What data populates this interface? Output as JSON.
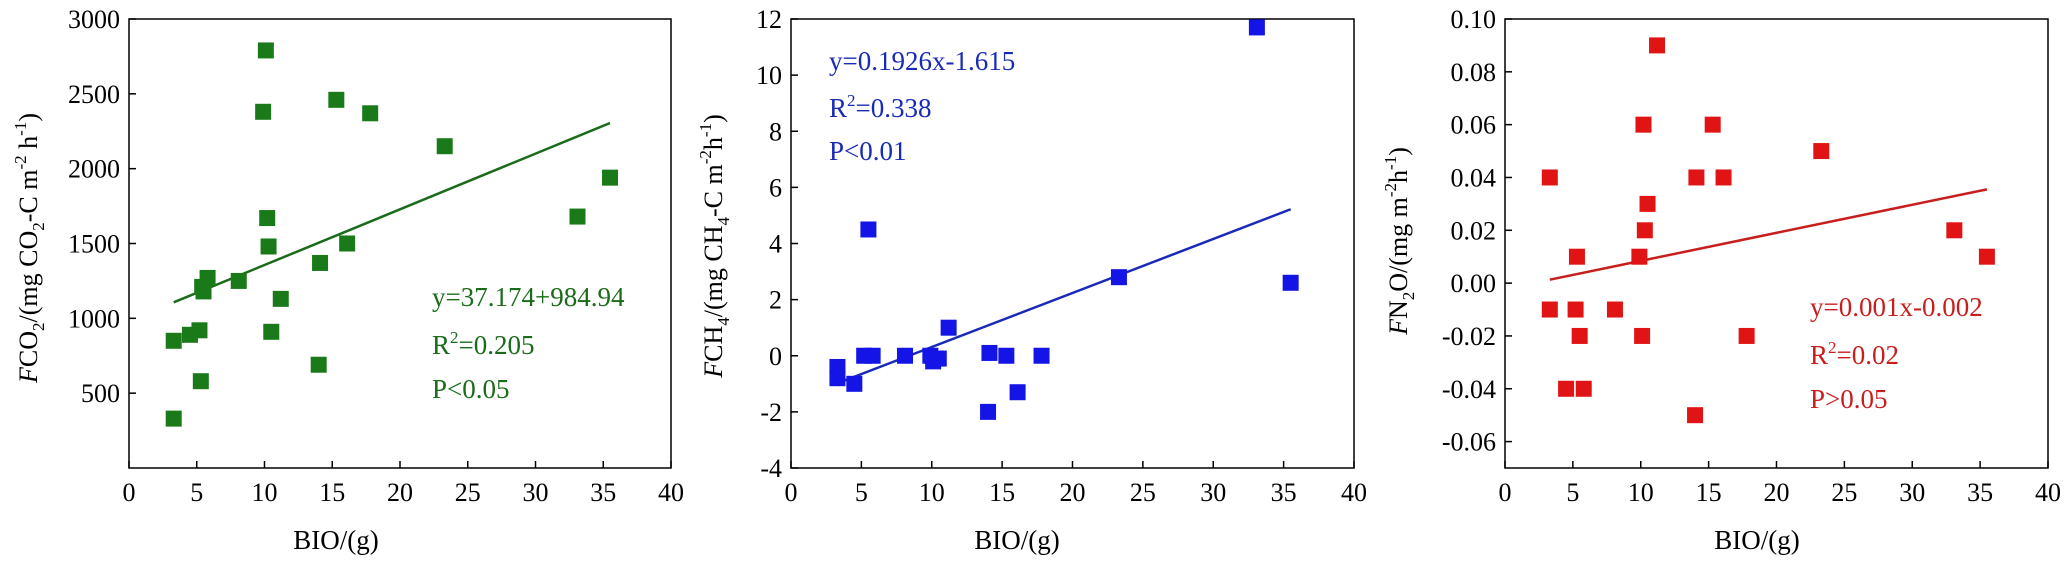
{
  "chart_data": [
    {
      "type": "scatter",
      "title": "",
      "xlabel": "BIO/(g)",
      "ylabel_parts": [
        "F",
        "CO",
        "2",
        "/(mg CO",
        "2",
        "-C m",
        "-2",
        " h",
        "-1",
        ")"
      ],
      "xlim": [
        0,
        40
      ],
      "ylim": [
        0,
        3000
      ],
      "xticks": [
        0,
        5,
        10,
        15,
        20,
        25,
        30,
        35,
        40
      ],
      "yticks": [
        500,
        1000,
        1500,
        2000,
        2500,
        3000
      ],
      "ytick_labels": [
        "500",
        "1000",
        "1500",
        "2000",
        "2500",
        "3000"
      ],
      "color": "#1a7a1a",
      "line_color": "#1a6b1a",
      "series": [
        {
          "x": [
            3.3,
            3.3,
            4.5,
            5.2,
            5.3,
            5.4,
            5.5,
            5.8,
            8.1,
            9.9,
            10.1,
            10.2,
            10.3,
            10.5,
            11.2,
            14.0,
            14.1,
            15.3,
            16.1,
            17.8,
            23.3,
            33.1,
            35.5
          ],
          "y": [
            850,
            330,
            890,
            920,
            580,
            1210,
            1180,
            1270,
            1250,
            2380,
            2790,
            1670,
            1480,
            910,
            1130,
            690,
            1370,
            2460,
            1500,
            2370,
            2150,
            1680,
            1940
          ]
        }
      ],
      "fit_line": {
        "x": [
          3.3,
          35.5
        ],
        "y": [
          1107,
          2305
        ]
      },
      "annotations": {
        "equation": "y=37.174+984.94",
        "r2_prefix": "R",
        "r2_sup": "2",
        "r2_value": "=0.205",
        "p": "P<0.05"
      }
    },
    {
      "type": "scatter",
      "title": "",
      "xlabel": "BIO/(g)",
      "ylabel_parts": [
        "F",
        "CH",
        "4",
        "/(mg CH",
        "4",
        "-C m",
        "-2",
        "h",
        "-1",
        ")"
      ],
      "xlim": [
        0,
        40
      ],
      "ylim": [
        -4,
        12
      ],
      "xticks": [
        0,
        5,
        10,
        15,
        20,
        25,
        30,
        35,
        40
      ],
      "yticks": [
        -4,
        -2,
        0,
        2,
        4,
        6,
        8,
        10,
        12
      ],
      "ytick_labels": [
        "-4",
        "-2",
        "0",
        "2",
        "4",
        "6",
        "8",
        "10",
        "12"
      ],
      "color": "#1414e6",
      "line_color": "#1a2ab8",
      "series": [
        {
          "x": [
            3.3,
            3.3,
            4.5,
            5.2,
            5.5,
            5.8,
            8.1,
            9.9,
            10.1,
            10.3,
            10.5,
            11.2,
            14.0,
            14.1,
            15.3,
            16.1,
            17.8,
            23.3,
            33.1,
            35.5
          ],
          "y": [
            -0.4,
            -0.8,
            -1.0,
            0.0,
            4.5,
            0.0,
            0.0,
            0.0,
            -0.2,
            -0.1,
            -0.1,
            1.0,
            -2.0,
            0.1,
            0.0,
            -1.3,
            0.0,
            2.8,
            11.7,
            2.6
          ]
        }
      ],
      "fit_line": {
        "x": [
          3.3,
          35.5
        ],
        "y": [
          -0.98,
          5.22
        ]
      },
      "annotations": {
        "equation": "y=0.1926x-1.615",
        "r2_prefix": "R",
        "r2_sup": "2",
        "r2_value": "=0.338",
        "p": "P<0.01"
      }
    },
    {
      "type": "scatter",
      "title": "",
      "xlabel": "BIO/(g)",
      "ylabel_parts": [
        "F",
        "N",
        "2",
        "O/(mg m",
        "-2",
        "h",
        "-1",
        ")"
      ],
      "xlim": [
        0,
        40
      ],
      "ylim": [
        -0.07,
        0.1
      ],
      "xticks": [
        0,
        5,
        10,
        15,
        20,
        25,
        30,
        35,
        40
      ],
      "yticks": [
        -0.06,
        -0.04,
        -0.02,
        0.0,
        0.02,
        0.04,
        0.06,
        0.08,
        0.1
      ],
      "ytick_labels": [
        "-0.06",
        "-0.04",
        "-0.02",
        "0.00",
        "0.02",
        "0.04",
        "0.06",
        "0.08",
        "0.10"
      ],
      "color": "#e01414",
      "line_color": "#c81e1e",
      "series": [
        {
          "x": [
            3.3,
            3.3,
            4.5,
            5.2,
            5.3,
            5.5,
            5.8,
            8.1,
            9.9,
            10.1,
            10.2,
            10.3,
            10.5,
            11.2,
            14.0,
            14.1,
            15.3,
            16.1,
            17.8,
            23.3,
            33.1,
            35.5
          ],
          "y": [
            0.04,
            -0.01,
            -0.04,
            -0.01,
            0.01,
            -0.02,
            -0.04,
            -0.01,
            0.01,
            -0.02,
            0.06,
            0.02,
            0.03,
            0.09,
            -0.05,
            0.04,
            0.06,
            0.04,
            -0.02,
            0.05,
            0.02,
            0.01
          ]
        }
      ],
      "fit_line": {
        "x": [
          3.3,
          35.5
        ],
        "y": [
          0.0013,
          0.0355
        ]
      },
      "annotations": {
        "equation": "y=0.001x-0.002",
        "r2_prefix": "R",
        "r2_sup": "2",
        "r2_value": "=0.02",
        "p": "P>0.05"
      }
    }
  ]
}
